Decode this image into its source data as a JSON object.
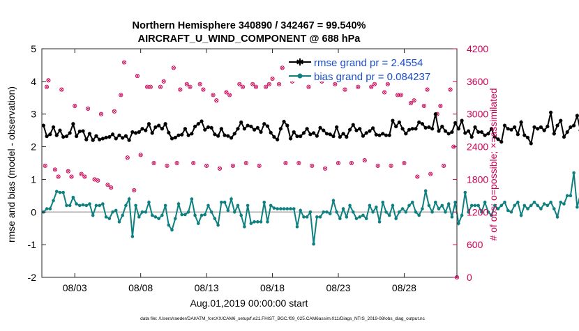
{
  "chart_data": {
    "type": "line",
    "title_line1": "Northern Hemisphere 340890 / 342467 = 99.540%",
    "title_line2": "AIRCRAFT_U_WIND_COMPONENT @ 688 hPa",
    "xlabel": "Aug.01,2019 00:00:00 start",
    "ylabel_left": "rmse and bias (model - observation)",
    "ylabel_right": "# of obs: o=possible; ×=assimilated",
    "footnote": "data file: /Users/raeder/DAI/ATM_forcXX/CAM6_setup/f.e21.FHIST_BGC.f09_025.CAM6assim.011/Diags_NTrS_2019-08/obs_diag_output.nc",
    "xlim": [
      0.5,
      32.0
    ],
    "ylim_left": [
      -2,
      5
    ],
    "ylim_right": [
      0,
      4200
    ],
    "x_ticks": [
      3,
      8,
      13,
      18,
      23,
      28
    ],
    "x_tick_labels": [
      "08/03",
      "08/08",
      "08/13",
      "08/18",
      "08/23",
      "08/28"
    ],
    "y_left_ticks": [
      -2,
      -1,
      0,
      1,
      2,
      3,
      4,
      5
    ],
    "y_left_tick_labels": [
      "-2",
      "-1",
      "0",
      "1",
      "2",
      "3",
      "4",
      "5"
    ],
    "y_right_ticks": [
      0,
      600,
      1200,
      1800,
      2400,
      3000,
      3600,
      4200
    ],
    "y_right_tick_labels": [
      "0",
      "600",
      "1200",
      "1800",
      "2400",
      "3000",
      "3600",
      "4200"
    ],
    "legend": [
      {
        "name": "rmse grand pr = 2.4554",
        "color": "#000000"
      },
      {
        "name": "bias grand pr = 0.084237",
        "color": "#0f8080"
      }
    ],
    "x_start": 0.625,
    "x_step": 0.25,
    "series": [
      {
        "name": "rmse",
        "color": "#000000",
        "values": [
          2.65,
          2.32,
          2.38,
          2.6,
          2.35,
          2.5,
          2.3,
          2.32,
          2.42,
          2.7,
          2.32,
          2.47,
          2.48,
          2.22,
          2.4,
          2.2,
          2.33,
          2.22,
          2.25,
          2.28,
          2.3,
          2.38,
          2.25,
          2.35,
          2.27,
          2.33,
          2.2,
          2.45,
          2.42,
          2.45,
          2.55,
          2.5,
          2.7,
          2.42,
          2.6,
          2.65,
          2.55,
          2.7,
          2.43,
          2.25,
          2.28,
          2.35,
          2.37,
          2.55,
          2.35,
          2.4,
          2.62,
          2.7,
          2.78,
          2.52,
          2.6,
          2.58,
          2.38,
          2.33,
          2.55,
          2.35,
          2.33,
          2.27,
          2.4,
          2.55,
          2.75,
          2.55,
          2.65,
          2.62,
          2.52,
          2.58,
          2.45,
          2.7,
          2.63,
          2.43,
          2.3,
          2.22,
          2.55,
          2.77,
          2.65,
          2.25,
          2.45,
          2.32,
          2.32,
          2.42,
          2.55,
          2.38,
          2.42,
          2.33,
          2.58,
          2.5,
          2.4,
          2.38,
          2.32,
          2.6,
          2.3,
          2.4,
          2.3,
          2.52,
          2.67,
          2.5,
          2.55,
          2.33,
          2.42,
          2.48,
          2.57,
          2.37,
          2.35,
          2.4,
          2.35,
          2.35,
          2.8,
          2.62,
          2.75,
          2.55,
          2.4,
          2.52,
          2.55,
          2.55,
          2.75,
          2.7,
          2.58,
          2.6,
          2.55,
          3.0,
          2.48,
          2.62,
          2.48,
          2.4,
          2.45,
          2.73,
          2.55,
          2.8,
          2.42,
          2.48,
          2.3,
          2.6,
          2.45,
          2.45,
          2.35,
          2.4,
          2.55,
          2.3,
          2.23,
          2.15,
          2.65,
          2.55,
          2.52,
          2.6,
          2.38,
          2.75,
          2.35,
          2.28,
          2.1,
          2.6,
          2.55,
          2.6,
          2.5,
          2.62,
          3.05,
          2.4,
          2.65,
          2.8,
          2.3,
          2.45,
          2.6,
          2.65,
          2.95,
          2.5,
          2.55,
          2.5,
          2.48,
          2.52,
          3.3,
          2.65,
          3.15,
          2.9,
          2.55,
          2.6,
          2.2,
          2.35,
          2.7,
          2.55,
          2.45,
          2.38,
          2.15,
          2.8,
          3.0,
          2.6,
          2.32,
          2.3,
          2.15,
          2.2,
          2.3,
          2.22,
          2.3,
          2.3
        ]
      },
      {
        "name": "bias",
        "color": "#0f8080",
        "values": [
          0.0,
          0.1,
          0.1,
          0.35,
          0.63,
          0.6,
          0.6,
          0.2,
          0.2,
          0.45,
          0.25,
          0.2,
          0.22,
          0.2,
          0.25,
          -0.1,
          0.2,
          0.2,
          0.25,
          -0.15,
          -0.2,
          0.0,
          0.05,
          -0.3,
          -0.1,
          0.2,
          0.4,
          -0.75,
          0.2,
          -0.15,
          0.0,
          0.0,
          0.3,
          -0.1,
          -0.15,
          -0.2,
          -0.1,
          0.2,
          -0.4,
          -0.55,
          -0.2,
          0.25,
          -0.08,
          -0.08,
          0.0,
          0.4,
          -0.1,
          -0.35,
          -0.1,
          -0.08,
          0.2,
          0.0,
          -0.2,
          -0.4,
          0.3,
          0.3,
          0.05,
          0.4,
          0.0,
          0.2,
          -0.1,
          -0.45,
          0.2,
          -0.35,
          -0.3,
          -0.3,
          -0.3,
          0.3,
          -0.3,
          0.2,
          0.12,
          0.1,
          0.1,
          0.1,
          0.1,
          0.1,
          0.1,
          -0.45,
          0.05,
          -0.15,
          -0.15,
          0.0,
          -0.98,
          -0.15,
          -0.15,
          0.0,
          0.0,
          -0.05,
          0.35,
          0.0,
          -0.2,
          0.1,
          -0.15,
          0.2,
          0.0,
          -0.2,
          -0.15,
          -0.1,
          -0.2,
          0.2,
          0.0,
          0.15,
          -0.3,
          0.3,
          0.0,
          -0.1,
          0.2,
          -0.2,
          0.0,
          0.1,
          0.0,
          0.2,
          0.3,
          0.0,
          -0.1,
          0.1,
          0.65,
          0.2,
          0.0,
          0.3,
          0.1,
          0.2,
          0.0,
          0.25,
          -0.15,
          0.3,
          -0.35,
          -0.1,
          0.6,
          0.0,
          0.2,
          0.2,
          0.2,
          0.0,
          0.3,
          0.0,
          -0.1,
          0.2,
          0.1,
          0.2,
          0.3,
          0.05,
          0.0,
          0.2,
          0.3,
          -0.1,
          0.2,
          0.1,
          0.2,
          0.3,
          0.2,
          0.1,
          0.25,
          0.2,
          0.3,
          0.1,
          -0.15,
          0.3,
          0.25,
          0.5,
          0.5,
          1.2,
          0.15,
          0.55,
          0.35,
          0.25,
          0.3,
          0.2,
          0.2,
          0.1,
          0.3,
          0.2,
          0.6,
          0.85,
          0.4,
          0.6,
          0.2,
          0.3,
          0.2,
          -0.1,
          -0.3,
          -0.4,
          -0.15,
          0.1,
          0.2,
          0.0,
          0.0,
          0.3,
          0.6,
          0.15,
          0.2,
          0.2,
          -0.2,
          -0.1,
          0.4
        ]
      },
      {
        "name": "obs possible",
        "color": "#cc0055",
        "points": [
          [
            0.75,
            2050
          ],
          [
            0.87,
            3500
          ],
          [
            1.0,
            3620
          ],
          [
            1.5,
            1980
          ],
          [
            1.75,
            1850
          ],
          [
            2.0,
            3450
          ],
          [
            2.5,
            1950
          ],
          [
            2.75,
            1850
          ],
          [
            3.0,
            3150
          ],
          [
            3.5,
            1900
          ],
          [
            3.75,
            1850
          ],
          [
            4.0,
            3100
          ],
          [
            4.5,
            1800
          ],
          [
            4.75,
            1780
          ],
          [
            5.0,
            3000
          ],
          [
            5.5,
            1700
          ],
          [
            5.75,
            1650
          ],
          [
            6.0,
            3050
          ],
          [
            6.5,
            3350
          ],
          [
            6.75,
            3950
          ],
          [
            7.0,
            2200
          ],
          [
            7.5,
            1600
          ],
          [
            7.75,
            3700
          ],
          [
            8.0,
            2250
          ],
          [
            8.5,
            3500
          ],
          [
            8.75,
            3500
          ],
          [
            9.0,
            2100
          ],
          [
            9.5,
            3500
          ],
          [
            9.75,
            3600
          ],
          [
            10.0,
            2050
          ],
          [
            10.5,
            3850
          ],
          [
            10.75,
            2100
          ],
          [
            11.0,
            3450
          ],
          [
            11.5,
            3550
          ],
          [
            11.75,
            3500
          ],
          [
            12.0,
            2100
          ],
          [
            12.5,
            3550
          ],
          [
            12.75,
            3450
          ],
          [
            13.0,
            2050
          ],
          [
            13.5,
            3350
          ],
          [
            13.75,
            3250
          ],
          [
            14.0,
            2000
          ],
          [
            14.5,
            3400
          ],
          [
            14.75,
            3350
          ],
          [
            15.0,
            2050
          ],
          [
            15.5,
            3550
          ],
          [
            15.75,
            3500
          ],
          [
            16.0,
            2100
          ],
          [
            16.5,
            3550
          ],
          [
            16.75,
            3500
          ],
          [
            17.0,
            2050
          ],
          [
            17.5,
            3500
          ],
          [
            17.75,
            3550
          ],
          [
            18.0,
            3650
          ],
          [
            18.5,
            3550
          ],
          [
            18.75,
            3850
          ],
          [
            19.0,
            2100
          ],
          [
            19.5,
            3600
          ],
          [
            19.75,
            3650
          ],
          [
            20.0,
            2100
          ],
          [
            20.5,
            3700
          ],
          [
            20.75,
            3500
          ],
          [
            21.0,
            2050
          ],
          [
            21.5,
            3650
          ],
          [
            21.75,
            3600
          ],
          [
            22.0,
            2000
          ],
          [
            22.5,
            3650
          ],
          [
            22.75,
            3550
          ],
          [
            23.0,
            2100
          ],
          [
            23.5,
            3450
          ],
          [
            23.75,
            3650
          ],
          [
            24.0,
            2100
          ],
          [
            24.5,
            3500
          ],
          [
            24.75,
            3700
          ],
          [
            25.0,
            2150
          ],
          [
            25.5,
            3500
          ],
          [
            25.75,
            3550
          ],
          [
            26.0,
            2050
          ],
          [
            26.5,
            3400
          ],
          [
            26.75,
            3550
          ],
          [
            27.0,
            2050
          ],
          [
            27.5,
            3350
          ],
          [
            27.75,
            3350
          ],
          [
            28.0,
            2100
          ],
          [
            28.5,
            3200
          ],
          [
            28.75,
            3250
          ],
          [
            29.0,
            1850
          ],
          [
            29.5,
            3150
          ],
          [
            29.75,
            3450
          ],
          [
            30.0,
            1900
          ],
          [
            30.5,
            3000
          ],
          [
            30.75,
            3150
          ],
          [
            31.0,
            2050
          ],
          [
            31.5,
            3450
          ],
          [
            31.75,
            2400
          ],
          [
            32.0,
            0
          ]
        ]
      }
    ]
  }
}
